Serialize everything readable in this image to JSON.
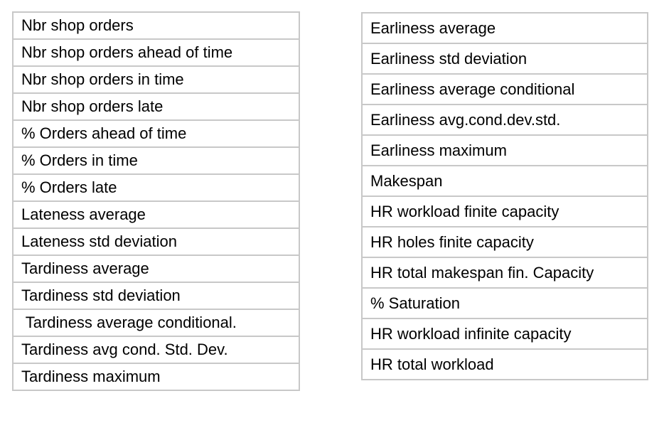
{
  "left_table": {
    "rows": [
      "Nbr  shop orders",
      "Nbr shop orders ahead of time",
      "Nbr shop orders in time",
      "Nbr shop orders late",
      "% Orders ahead of time",
      "% Orders in time",
      "% Orders late",
      "Lateness average",
      "Lateness std deviation",
      "Tardiness average",
      "Tardiness std deviation",
      " Tardiness average conditional.",
      "Tardiness avg cond. Std. Dev.",
      "Tardiness maximum"
    ]
  },
  "right_table": {
    "rows": [
      "Earliness average",
      "Earliness std deviation",
      "Earliness average  conditional",
      "Earliness avg.cond.dev.std.",
      "Earliness maximum",
      "Makespan",
      "HR workload  finite capacity",
      "HR holes finite capacity",
      "HR total makespan  fin. Capacity",
      "% Saturation",
      "HR workload  infinite capacity",
      "HR total workload"
    ]
  }
}
